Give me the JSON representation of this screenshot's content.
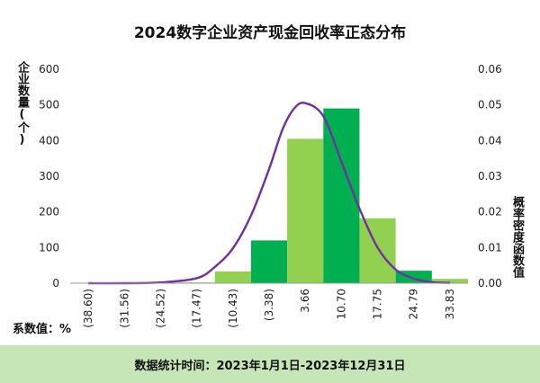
{
  "chart_data": {
    "type": "bar",
    "title": "2024数字企业资产现金回收率正态分布",
    "ylabel": "企业数量(个)",
    "y2label": "概率密度函数值",
    "categories": [
      "(38.60)",
      "(31.56)",
      "(24.52)",
      "(17.47)",
      "(10.43)",
      "(3.38)",
      "3.66",
      "10.70",
      "17.75",
      "24.79",
      "33.83"
    ],
    "values": [
      0,
      0,
      0,
      2,
      33,
      120,
      405,
      490,
      182,
      35,
      12
    ],
    "bar_colors": [
      "#92d050",
      "#92d050",
      "#92d050",
      "#92d050",
      "#92d050",
      "#00b050",
      "#92d050",
      "#00b050",
      "#92d050",
      "#00b050",
      "#92d050"
    ],
    "ylim": [
      0,
      600
    ],
    "yticks": [
      "0",
      "100",
      "200",
      "300",
      "400",
      "500",
      "600"
    ],
    "y2lim": [
      0,
      0.06
    ],
    "y2ticks": [
      "0.00",
      "0.01",
      "0.02",
      "0.03",
      "0.04",
      "0.05",
      "0.06"
    ],
    "density_curve": {
      "color": "#7030a0",
      "x": [
        -38.6,
        -31.56,
        -24.52,
        -17.47,
        -14.0,
        -10.43,
        -6.9,
        -3.38,
        -0.8,
        1.5,
        3.66,
        7.2,
        10.7,
        14.2,
        17.75,
        21.3,
        24.79,
        29.3,
        33.83
      ],
      "y": [
        0.0,
        0.0,
        0.0002,
        0.0014,
        0.0045,
        0.0098,
        0.019,
        0.032,
        0.043,
        0.049,
        0.0505,
        0.0468,
        0.034,
        0.021,
        0.01,
        0.0038,
        0.0013,
        0.0003,
        0.0001
      ]
    },
    "unit_note": "系数值：%",
    "footer": "数据统计时间：2023年1月1日-2023年12月31日"
  }
}
